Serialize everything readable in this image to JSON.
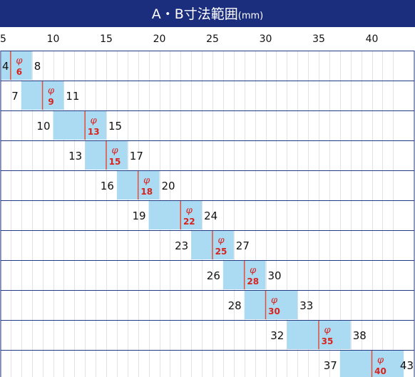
{
  "header": {
    "title_main": "A・B寸法範囲",
    "title_unit": "(mm)"
  },
  "colors": {
    "header_bg": "#1b2e7e",
    "header_text": "#ffffff",
    "row_border": "#233a84",
    "grid": "#e3e3e3",
    "bar": "#abdaf3",
    "marker": "#e0503a",
    "phi_text": "#d8231d",
    "value_text": "#111111"
  },
  "chart_data": {
    "type": "bar",
    "title": "A・B寸法範囲(mm)",
    "xlim": [
      5,
      42.5
    ],
    "xticks": [
      5,
      10,
      15,
      20,
      25,
      30,
      35,
      40
    ],
    "grid": true,
    "rows": [
      {
        "min": 4,
        "max": 8,
        "phi": 6,
        "phi_symbol": "φ"
      },
      {
        "min": 7,
        "max": 11,
        "phi": 9,
        "phi_symbol": "φ"
      },
      {
        "min": 10,
        "max": 15,
        "phi": 13,
        "phi_symbol": "φ"
      },
      {
        "min": 13,
        "max": 17,
        "phi": 15,
        "phi_symbol": "φ"
      },
      {
        "min": 16,
        "max": 20,
        "phi": 18,
        "phi_symbol": "φ"
      },
      {
        "min": 19,
        "max": 24,
        "phi": 22,
        "phi_symbol": "φ"
      },
      {
        "min": 23,
        "max": 27,
        "phi": 25,
        "phi_symbol": "φ"
      },
      {
        "min": 26,
        "max": 30,
        "phi": 28,
        "phi_symbol": "φ"
      },
      {
        "min": 28,
        "max": 33,
        "phi": 30,
        "phi_symbol": "φ"
      },
      {
        "min": 32,
        "max": 38,
        "phi": 35,
        "phi_symbol": "φ"
      },
      {
        "min": 37,
        "max": 43,
        "phi": 40,
        "phi_symbol": "φ"
      }
    ]
  }
}
